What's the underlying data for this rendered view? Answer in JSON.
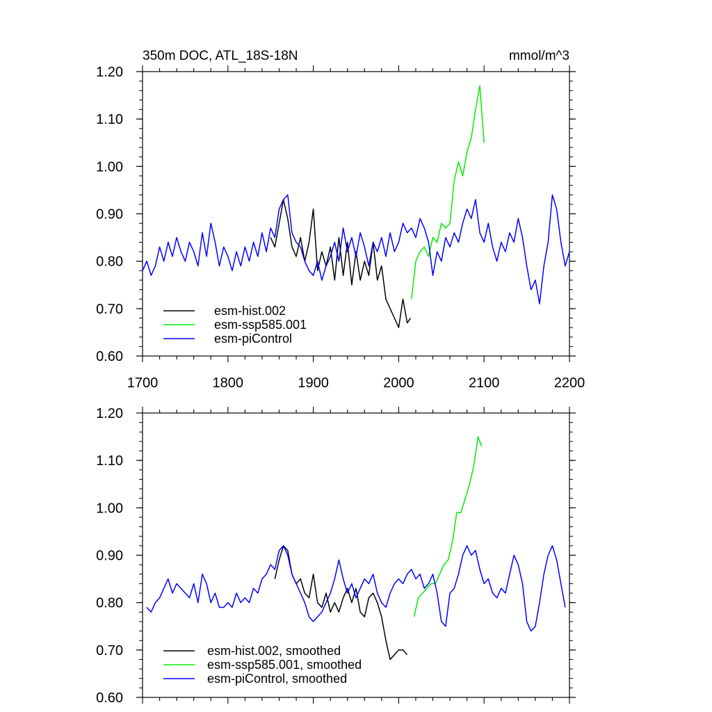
{
  "chart_data": [
    {
      "type": "line",
      "title": "350m DOC, ATL_18S-18N",
      "units": "mmol/m^3",
      "xlim": [
        1700,
        2200
      ],
      "ylim": [
        0.6,
        1.2
      ],
      "x_ticks": [
        1700,
        1800,
        1900,
        2000,
        2100,
        2200
      ],
      "y_ticks": [
        "0.60",
        "0.70",
        "0.80",
        "0.90",
        "1.00",
        "1.10",
        "1.20"
      ],
      "legend_position": "bottom-left",
      "series": [
        {
          "name": "esm-hist.002",
          "color": "#000000",
          "x": [
            1850,
            1855,
            1860,
            1865,
            1870,
            1875,
            1880,
            1885,
            1890,
            1895,
            1900,
            1905,
            1910,
            1915,
            1920,
            1925,
            1930,
            1935,
            1940,
            1945,
            1950,
            1955,
            1960,
            1965,
            1970,
            1975,
            1980,
            1985,
            1990,
            1995,
            2000,
            2005,
            2010,
            2014
          ],
          "y": [
            0.85,
            0.83,
            0.88,
            0.93,
            0.89,
            0.83,
            0.81,
            0.85,
            0.8,
            0.84,
            0.91,
            0.78,
            0.82,
            0.79,
            0.83,
            0.76,
            0.85,
            0.77,
            0.84,
            0.75,
            0.82,
            0.76,
            0.8,
            0.77,
            0.84,
            0.76,
            0.79,
            0.72,
            0.7,
            0.68,
            0.66,
            0.72,
            0.67,
            0.68
          ]
        },
        {
          "name": "esm-ssp585.001",
          "color": "#00ee00",
          "x": [
            2015,
            2020,
            2025,
            2030,
            2035,
            2040,
            2045,
            2050,
            2055,
            2060,
            2065,
            2070,
            2075,
            2080,
            2085,
            2090,
            2095,
            2100
          ],
          "y": [
            0.72,
            0.8,
            0.82,
            0.83,
            0.81,
            0.85,
            0.84,
            0.88,
            0.87,
            0.88,
            0.97,
            1.01,
            0.98,
            1.03,
            1.06,
            1.12,
            1.17,
            1.05
          ]
        },
        {
          "name": "esm-piControl",
          "color": "#0000ff",
          "x": [
            1700,
            1705,
            1710,
            1715,
            1720,
            1725,
            1730,
            1735,
            1740,
            1745,
            1750,
            1755,
            1760,
            1765,
            1770,
            1775,
            1780,
            1785,
            1790,
            1795,
            1800,
            1805,
            1810,
            1815,
            1820,
            1825,
            1830,
            1835,
            1840,
            1845,
            1850,
            1855,
            1860,
            1865,
            1870,
            1875,
            1880,
            1885,
            1890,
            1895,
            1900,
            1905,
            1910,
            1915,
            1920,
            1925,
            1930,
            1935,
            1940,
            1945,
            1950,
            1955,
            1960,
            1965,
            1970,
            1975,
            1980,
            1985,
            1990,
            1995,
            2000,
            2005,
            2010,
            2015,
            2020,
            2025,
            2030,
            2035,
            2040,
            2045,
            2050,
            2055,
            2060,
            2065,
            2070,
            2075,
            2080,
            2085,
            2090,
            2095,
            2100,
            2105,
            2110,
            2115,
            2120,
            2125,
            2130,
            2135,
            2140,
            2145,
            2150,
            2155,
            2160,
            2165,
            2170,
            2175,
            2180,
            2185,
            2190,
            2195,
            2200
          ],
          "y": [
            0.78,
            0.8,
            0.77,
            0.79,
            0.83,
            0.8,
            0.84,
            0.81,
            0.85,
            0.82,
            0.8,
            0.84,
            0.82,
            0.79,
            0.86,
            0.81,
            0.88,
            0.84,
            0.79,
            0.83,
            0.81,
            0.78,
            0.82,
            0.79,
            0.83,
            0.8,
            0.84,
            0.81,
            0.86,
            0.82,
            0.87,
            0.85,
            0.91,
            0.93,
            0.94,
            0.86,
            0.84,
            0.83,
            0.8,
            0.78,
            0.77,
            0.8,
            0.76,
            0.79,
            0.81,
            0.84,
            0.8,
            0.87,
            0.82,
            0.85,
            0.81,
            0.86,
            0.83,
            0.79,
            0.84,
            0.82,
            0.85,
            0.81,
            0.86,
            0.82,
            0.84,
            0.88,
            0.86,
            0.87,
            0.85,
            0.89,
            0.87,
            0.84,
            0.77,
            0.82,
            0.8,
            0.85,
            0.83,
            0.86,
            0.84,
            0.88,
            0.91,
            0.89,
            0.93,
            0.86,
            0.84,
            0.88,
            0.83,
            0.8,
            0.84,
            0.82,
            0.86,
            0.84,
            0.89,
            0.85,
            0.79,
            0.74,
            0.76,
            0.71,
            0.79,
            0.84,
            0.94,
            0.91,
            0.84,
            0.79,
            0.82
          ]
        }
      ]
    },
    {
      "type": "line",
      "title": "",
      "xlim": [
        1700,
        2200
      ],
      "ylim": [
        0.6,
        1.2
      ],
      "y_ticks": [
        "0.60",
        "0.70",
        "0.80",
        "0.90",
        "1.00",
        "1.10",
        "1.20"
      ],
      "legend_position": "bottom-left",
      "series": [
        {
          "name": "esm-hist.002, smoothed",
          "color": "#000000",
          "x": [
            1855,
            1860,
            1865,
            1870,
            1875,
            1880,
            1885,
            1890,
            1895,
            1900,
            1905,
            1910,
            1915,
            1920,
            1925,
            1930,
            1935,
            1940,
            1945,
            1950,
            1955,
            1960,
            1965,
            1970,
            1975,
            1980,
            1985,
            1990,
            1995,
            2000,
            2005,
            2010
          ],
          "y": [
            0.85,
            0.89,
            0.92,
            0.91,
            0.86,
            0.84,
            0.85,
            0.82,
            0.81,
            0.86,
            0.8,
            0.79,
            0.82,
            0.78,
            0.8,
            0.78,
            0.81,
            0.83,
            0.8,
            0.83,
            0.78,
            0.77,
            0.81,
            0.82,
            0.8,
            0.77,
            0.72,
            0.68,
            0.69,
            0.7,
            0.7,
            0.69
          ]
        },
        {
          "name": "esm-ssp585.001, smoothed",
          "color": "#00ee00",
          "x": [
            2018,
            2023,
            2028,
            2033,
            2038,
            2043,
            2048,
            2053,
            2058,
            2063,
            2068,
            2073,
            2078,
            2083,
            2088,
            2093,
            2097
          ],
          "y": [
            0.77,
            0.81,
            0.82,
            0.83,
            0.84,
            0.84,
            0.86,
            0.88,
            0.89,
            0.93,
            0.99,
            0.99,
            1.02,
            1.05,
            1.09,
            1.15,
            1.13
          ]
        },
        {
          "name": "esm-piControl, smoothed",
          "color": "#0000ff",
          "x": [
            1705,
            1710,
            1715,
            1720,
            1725,
            1730,
            1735,
            1740,
            1745,
            1750,
            1755,
            1760,
            1765,
            1770,
            1775,
            1780,
            1785,
            1790,
            1795,
            1800,
            1805,
            1810,
            1815,
            1820,
            1825,
            1830,
            1835,
            1840,
            1845,
            1850,
            1855,
            1860,
            1865,
            1870,
            1875,
            1880,
            1885,
            1890,
            1895,
            1900,
            1905,
            1910,
            1915,
            1920,
            1925,
            1930,
            1935,
            1940,
            1945,
            1950,
            1955,
            1960,
            1965,
            1970,
            1975,
            1980,
            1985,
            1990,
            1995,
            2000,
            2005,
            2010,
            2015,
            2020,
            2025,
            2030,
            2035,
            2040,
            2045,
            2050,
            2055,
            2060,
            2065,
            2070,
            2075,
            2080,
            2085,
            2090,
            2095,
            2100,
            2105,
            2110,
            2115,
            2120,
            2125,
            2130,
            2135,
            2140,
            2145,
            2150,
            2155,
            2160,
            2165,
            2170,
            2175,
            2180,
            2185,
            2190,
            2195
          ],
          "y": [
            0.79,
            0.78,
            0.8,
            0.81,
            0.83,
            0.85,
            0.82,
            0.84,
            0.83,
            0.82,
            0.81,
            0.84,
            0.8,
            0.86,
            0.84,
            0.8,
            0.82,
            0.79,
            0.79,
            0.8,
            0.79,
            0.82,
            0.8,
            0.81,
            0.8,
            0.83,
            0.82,
            0.85,
            0.86,
            0.88,
            0.87,
            0.91,
            0.92,
            0.9,
            0.86,
            0.84,
            0.82,
            0.8,
            0.77,
            0.76,
            0.77,
            0.78,
            0.8,
            0.82,
            0.85,
            0.89,
            0.85,
            0.82,
            0.84,
            0.81,
            0.83,
            0.85,
            0.84,
            0.86,
            0.82,
            0.8,
            0.79,
            0.82,
            0.84,
            0.85,
            0.84,
            0.86,
            0.87,
            0.85,
            0.86,
            0.83,
            0.84,
            0.86,
            0.82,
            0.76,
            0.75,
            0.82,
            0.83,
            0.86,
            0.9,
            0.92,
            0.9,
            0.91,
            0.87,
            0.84,
            0.85,
            0.82,
            0.81,
            0.83,
            0.82,
            0.86,
            0.9,
            0.88,
            0.84,
            0.76,
            0.74,
            0.75,
            0.8,
            0.86,
            0.9,
            0.92,
            0.89,
            0.84,
            0.79
          ]
        }
      ]
    }
  ]
}
